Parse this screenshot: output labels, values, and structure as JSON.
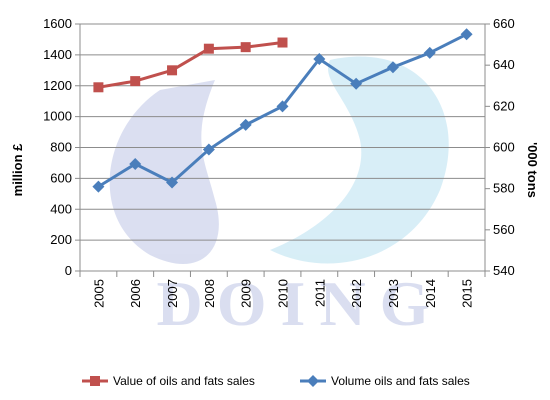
{
  "chart_data": {
    "type": "line",
    "title": "",
    "categories": [
      "2005",
      "2006",
      "2007",
      "2008",
      "2009",
      "2010",
      "2011",
      "2012",
      "2013",
      "2014",
      "2015"
    ],
    "y_left": {
      "label": "million £",
      "min": 0,
      "max": 1600,
      "step": 200
    },
    "y_right": {
      "label": "'000 tons",
      "min": 540,
      "max": 660,
      "step": 20
    },
    "grid": true,
    "legend_position": "bottom",
    "series": [
      {
        "name": "Value of oils and fats sales",
        "axis": "left",
        "color": "#c0504d",
        "marker": "square",
        "values": [
          1190,
          1230,
          1300,
          1440,
          1450,
          1480,
          null,
          null,
          null,
          null,
          null
        ]
      },
      {
        "name": "Volume oils and fats sales",
        "axis": "right",
        "color": "#4a7ebb",
        "marker": "diamond",
        "values": [
          581,
          592,
          583,
          599,
          611,
          620,
          643,
          631,
          639,
          646,
          655
        ]
      }
    ]
  },
  "watermark": {
    "text": "DOING",
    "color": "#5a6fbf"
  }
}
